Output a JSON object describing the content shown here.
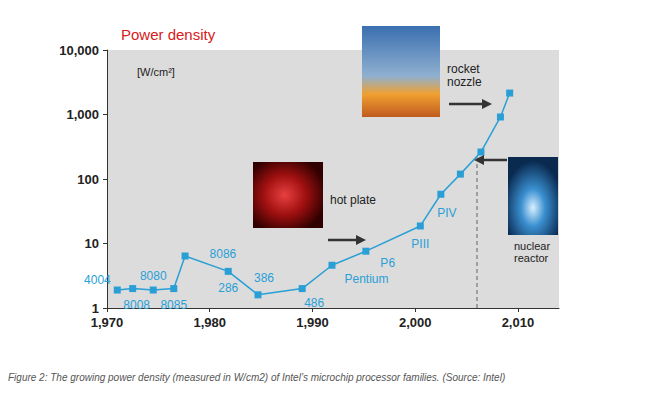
{
  "chart_data": {
    "type": "line",
    "title": "Power density",
    "y_unit_label": "[W/cm²]",
    "caption": "Figure 2: The growing power density (measured in W/cm2) of Intel’s microchip processor families. (Source: Intel)",
    "x": [
      1971,
      1972.5,
      1974.5,
      1976.5,
      1977.6,
      1981.8,
      1984.7,
      1989,
      1991.9,
      1995.2,
      2000.5,
      2002.5,
      2004.4,
      2006.4,
      2008.3,
      2009.2
    ],
    "values": [
      1.9,
      2.0,
      1.9,
      2.0,
      6.4,
      3.7,
      1.6,
      2.0,
      4.6,
      7.6,
      18.7,
      58,
      119,
      262,
      915,
      2150
    ],
    "point_labels": [
      "4004",
      "8008",
      "8080",
      "8085",
      "8086",
      "286",
      "386",
      "486",
      "Pentium",
      "P6",
      "PIII",
      "PIV",
      null,
      null,
      null,
      null
    ],
    "color": "#2a9fd6",
    "marker": "square",
    "xlim": [
      1970,
      2014
    ],
    "xticks": [
      1970,
      1980,
      1990,
      2000,
      2010
    ],
    "ylim": [
      1,
      10000
    ],
    "yticks": [
      1,
      10,
      100,
      1000,
      10000
    ],
    "log": "y",
    "grid": false,
    "annotations": [
      "hot plate",
      "rocket\nnozzle",
      "nuclear\nreactor"
    ]
  }
}
